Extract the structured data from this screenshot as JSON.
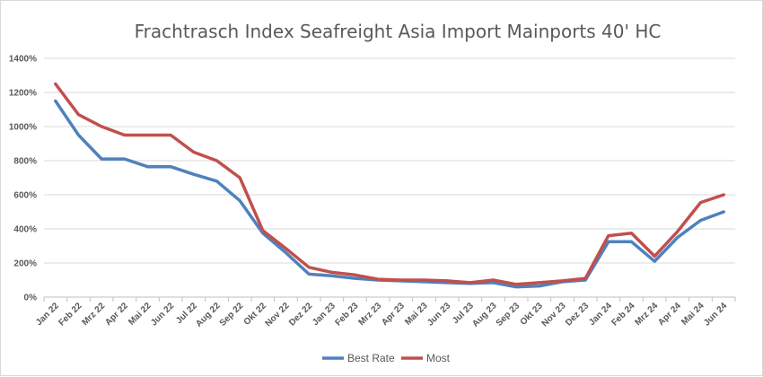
{
  "chart_data": {
    "type": "line",
    "title": "Frachtrasch Index Seafreight Asia Import Mainports 40' HC",
    "xlabel": "",
    "ylabel": "",
    "ylim": [
      0,
      1400
    ],
    "yticks": [
      0,
      200,
      400,
      600,
      800,
      1000,
      1200,
      1400
    ],
    "ytick_labels": [
      "0%",
      "200%",
      "400%",
      "600%",
      "800%",
      "1000%",
      "1200%",
      "1400%"
    ],
    "grid": true,
    "legend": "bottom",
    "categories": [
      "Jan 22",
      "Feb 22",
      "Mrz 22",
      "Apr 22",
      "Mai 22",
      "Jun 22",
      "Jul 22",
      "Aug 22",
      "Sep 22",
      "Okt 22",
      "Nov 22",
      "Dez 22",
      "Jan 23",
      "Feb 23",
      "Mrz 23",
      "Apr 23",
      "Mai 23",
      "Jun 23",
      "Jul 23",
      "Aug 23",
      "Sep 23",
      "Okt 23",
      "Nov 23",
      "Dez 23",
      "Jan 24",
      "Feb 24",
      "Mrz 24",
      "Apr 24",
      "Mai 24",
      "Jun 24"
    ],
    "series": [
      {
        "name": "Best Rate",
        "color": "#4f81bd",
        "values": [
          1150,
          950,
          810,
          810,
          765,
          765,
          720,
          680,
          565,
          375,
          260,
          135,
          125,
          110,
          100,
          95,
          90,
          85,
          80,
          85,
          60,
          65,
          90,
          100,
          325,
          325,
          210,
          350,
          450,
          500
        ]
      },
      {
        "name": "Most",
        "color": "#c0504d",
        "values": [
          1250,
          1070,
          1000,
          950,
          950,
          950,
          850,
          800,
          700,
          390,
          285,
          175,
          145,
          130,
          105,
          100,
          100,
          95,
          85,
          100,
          75,
          85,
          95,
          110,
          360,
          375,
          240,
          385,
          555,
          600
        ]
      }
    ]
  }
}
